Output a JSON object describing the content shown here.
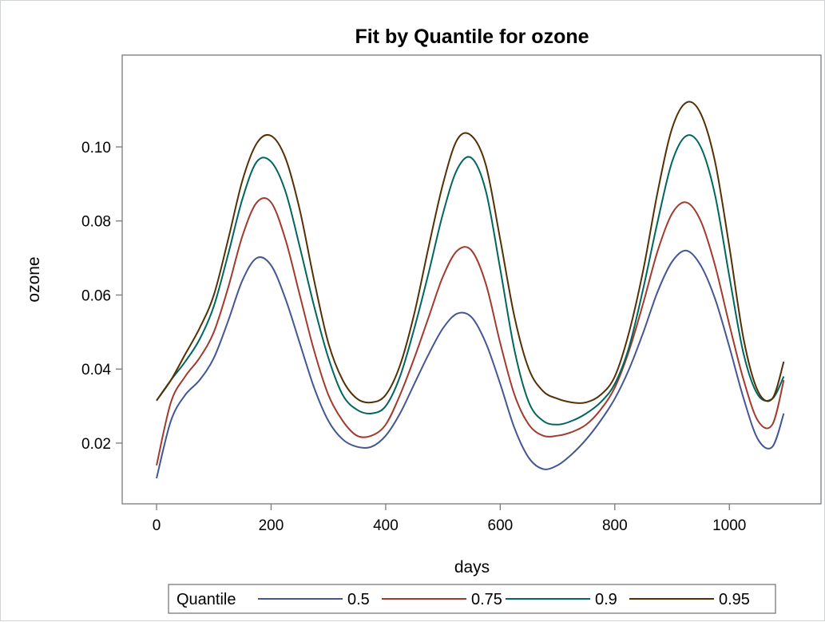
{
  "chart_data": {
    "type": "line",
    "title": "Fit by Quantile for ozone",
    "xlabel": "days",
    "ylabel": "ozone",
    "xlim": [
      -60,
      1160
    ],
    "ylim": [
      0.0036,
      0.1248
    ],
    "xticks": [
      0,
      200,
      400,
      600,
      800,
      1000
    ],
    "xtick_labels": [
      "0",
      "200",
      "400",
      "600",
      "800",
      "1000"
    ],
    "yticks": [
      0.02,
      0.04,
      0.06,
      0.08,
      0.1
    ],
    "ytick_labels": [
      "0.02",
      "0.04",
      "0.06",
      "0.08",
      "0.10"
    ],
    "grid": false,
    "legend": {
      "title": "Quantile",
      "position": "bottom"
    },
    "x": [
      0,
      25,
      50,
      75,
      100,
      125,
      150,
      175,
      200,
      225,
      250,
      275,
      300,
      325,
      350,
      375,
      400,
      425,
      450,
      475,
      500,
      525,
      550,
      575,
      600,
      625,
      650,
      675,
      700,
      725,
      750,
      775,
      800,
      825,
      850,
      875,
      900,
      925,
      950,
      975,
      1000,
      1025,
      1050,
      1075,
      1095
    ],
    "series": [
      {
        "name": "0.5",
        "color": "#445694",
        "values": [
          0.0105,
          0.026,
          0.033,
          0.037,
          0.043,
          0.053,
          0.064,
          0.07,
          0.068,
          0.059,
          0.047,
          0.035,
          0.026,
          0.021,
          0.019,
          0.019,
          0.022,
          0.028,
          0.036,
          0.044,
          0.051,
          0.055,
          0.054,
          0.047,
          0.036,
          0.024,
          0.016,
          0.013,
          0.014,
          0.017,
          0.021,
          0.026,
          0.032,
          0.04,
          0.05,
          0.061,
          0.069,
          0.072,
          0.068,
          0.059,
          0.046,
          0.032,
          0.021,
          0.019,
          0.028
        ]
      },
      {
        "name": "0.75",
        "color": "#a23a2e",
        "values": [
          0.014,
          0.031,
          0.038,
          0.043,
          0.05,
          0.062,
          0.076,
          0.085,
          0.085,
          0.075,
          0.06,
          0.045,
          0.033,
          0.026,
          0.022,
          0.022,
          0.025,
          0.033,
          0.043,
          0.054,
          0.065,
          0.072,
          0.072,
          0.063,
          0.047,
          0.033,
          0.025,
          0.022,
          0.022,
          0.023,
          0.025,
          0.029,
          0.035,
          0.045,
          0.058,
          0.072,
          0.082,
          0.085,
          0.08,
          0.068,
          0.052,
          0.037,
          0.026,
          0.025,
          0.037
        ]
      },
      {
        "name": "0.9",
        "color": "#01665e",
        "values": [
          0.0315,
          0.037,
          0.042,
          0.048,
          0.057,
          0.071,
          0.086,
          0.096,
          0.096,
          0.088,
          0.073,
          0.057,
          0.043,
          0.033,
          0.029,
          0.028,
          0.03,
          0.038,
          0.051,
          0.066,
          0.082,
          0.094,
          0.097,
          0.088,
          0.067,
          0.045,
          0.031,
          0.026,
          0.025,
          0.026,
          0.028,
          0.031,
          0.036,
          0.046,
          0.062,
          0.08,
          0.096,
          0.103,
          0.1,
          0.087,
          0.065,
          0.044,
          0.033,
          0.032,
          0.038
        ]
      },
      {
        "name": "0.95",
        "color": "#543005",
        "values": [
          0.0315,
          0.037,
          0.044,
          0.051,
          0.06,
          0.075,
          0.091,
          0.101,
          0.103,
          0.097,
          0.083,
          0.064,
          0.047,
          0.037,
          0.032,
          0.031,
          0.033,
          0.041,
          0.055,
          0.073,
          0.09,
          0.102,
          0.103,
          0.095,
          0.075,
          0.054,
          0.04,
          0.034,
          0.032,
          0.031,
          0.031,
          0.033,
          0.038,
          0.05,
          0.067,
          0.088,
          0.105,
          0.112,
          0.109,
          0.096,
          0.073,
          0.048,
          0.034,
          0.032,
          0.042
        ]
      }
    ]
  }
}
